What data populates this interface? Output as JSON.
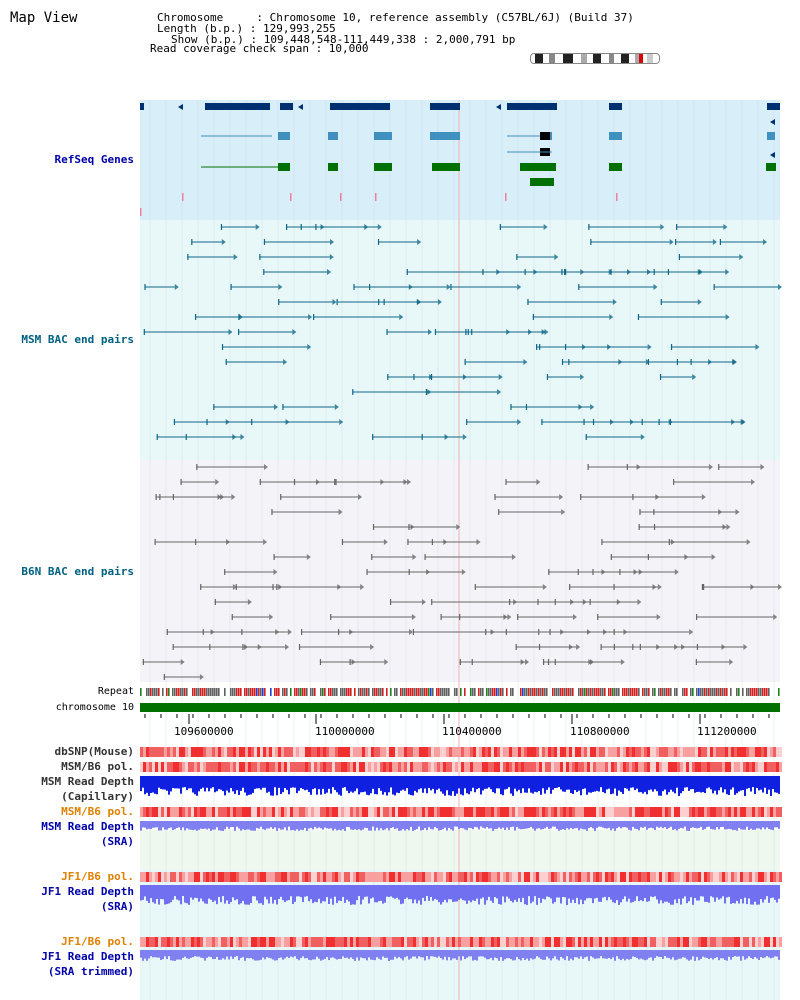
{
  "page": {
    "title": "Map View",
    "info": {
      "chromosome": "Chromosome     : Chromosome 10, reference assembly (C57BL/6J) (Build 37)",
      "length": "Length (b.p.) : 129,993,255",
      "show": "Show (b.p.) : 109,448,548-111,449,338 : 2,000,791 bp",
      "coverage": "Read coverage check span : 10,000"
    }
  },
  "tracks": {
    "refseq": "RefSeq Genes",
    "msm_bac": "MSM BAC end pairs",
    "b6n_bac": "B6N BAC end pairs",
    "repeat": "Repeat",
    "chromosome": "chromosome 10",
    "dbsnp": "dbSNP(Mouse)",
    "msm_b6_pol_1": "MSM/B6 pol.",
    "msm_depth_cap": "MSM Read Depth\n(Capillary)",
    "msm_b6_pol_2": "MSM/B6 pol.",
    "msm_depth_sra": "MSM Read Depth\n(SRA)",
    "jf1_b6_pol_1": "JF1/B6 pol.",
    "jf1_depth_sra": "JF1 Read Depth\n(SRA)",
    "jf1_b6_pol_2": "JF1/B6 pol.",
    "jf1_depth_trim": "JF1 Read Depth\n(SRA trimmed)"
  },
  "ruler": {
    "ticks": [
      "109600000",
      "110000000",
      "110400000",
      "110800000",
      "111200000"
    ]
  },
  "colors": {
    "refseq_label": "#0000aa",
    "msm_label": "#006080",
    "b6n_label": "#006080",
    "msm_pol_label": "#e08000",
    "sra_label": "#0000aa",
    "jf1_label": "#e08000"
  }
}
